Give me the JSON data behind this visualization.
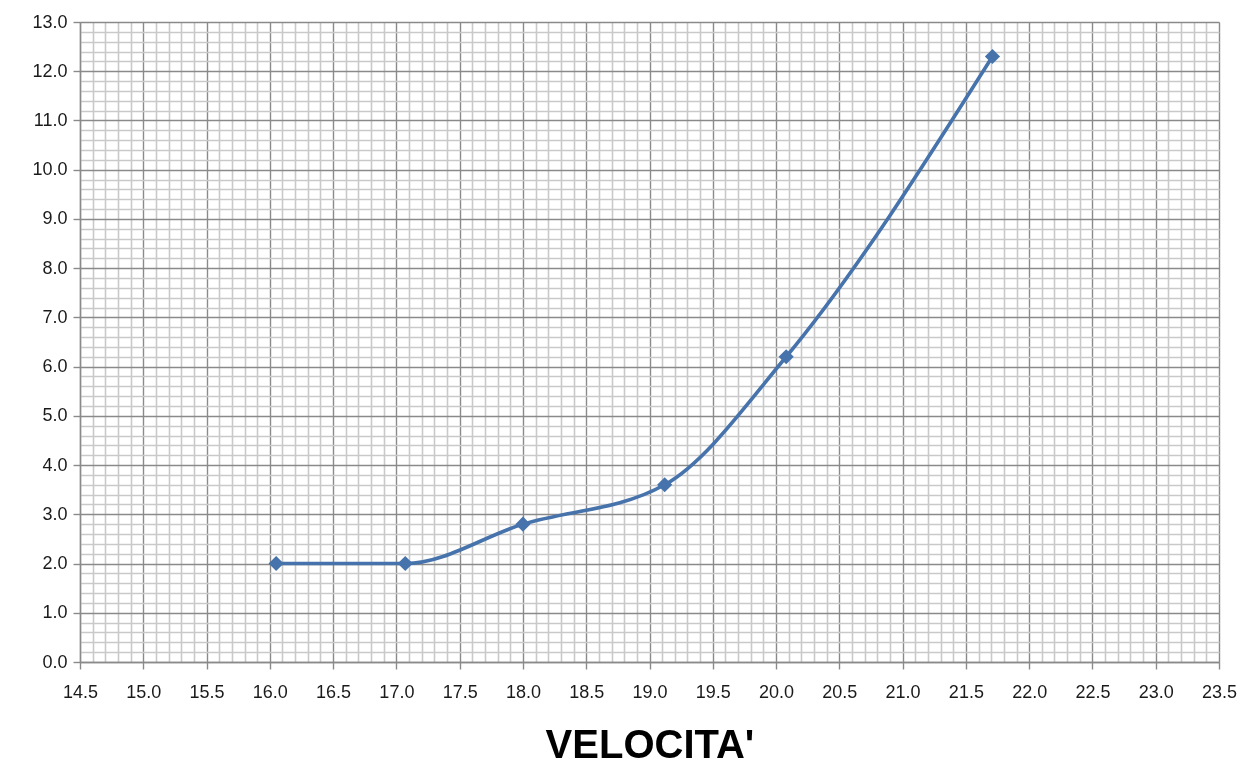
{
  "chart_data": {
    "type": "line",
    "xlabel": "VELOCITA'",
    "x": [
      16.05,
      17.07,
      18.0,
      19.12,
      20.08,
      21.71
    ],
    "series": [
      {
        "color": "#4673ab",
        "values": [
          2.0,
          2.0,
          2.8,
          3.6,
          6.2,
          12.3
        ]
      }
    ],
    "xlim": [
      14.5,
      23.5
    ],
    "xticks": [
      14.5,
      {
        "value": 14.6,
        "label": null
      },
      {
        "value": 14.7,
        "label": null
      },
      {
        "value": 14.8,
        "label": null
      },
      {
        "value": 14.9,
        "label": null
      },
      {
        "value": 15,
        "label": "15.0"
      },
      {
        "value": 15.1,
        "label": null
      },
      {
        "value": 15.2,
        "label": null
      },
      {
        "value": 15.3,
        "label": null
      },
      {
        "value": 15.4,
        "label": null
      },
      15.5,
      {
        "value": 15.6,
        "label": null
      },
      {
        "value": 15.7,
        "label": null
      },
      {
        "value": 15.8,
        "label": null
      },
      {
        "value": 15.9,
        "label": null
      },
      {
        "value": 16,
        "label": "16.0"
      },
      {
        "value": 16.1,
        "label": null
      },
      {
        "value": 16.2,
        "label": null
      },
      {
        "value": 16.3,
        "label": null
      },
      {
        "value": 16.4,
        "label": null
      },
      16.5,
      {
        "value": 16.6,
        "label": null
      },
      {
        "value": 16.7,
        "label": null
      },
      {
        "value": 16.8,
        "label": null
      },
      {
        "value": 16.9,
        "label": null
      },
      {
        "value": 17,
        "label": "17.0"
      },
      {
        "value": 17.1,
        "label": null
      },
      {
        "value": 17.2,
        "label": null
      },
      {
        "value": 17.3,
        "label": null
      },
      {
        "value": 17.4,
        "label": null
      },
      17.5,
      {
        "value": 17.6,
        "label": null
      },
      {
        "value": 17.7,
        "label": null
      },
      {
        "value": 17.8,
        "label": null
      },
      {
        "value": 17.9,
        "label": null
      },
      {
        "value": 18,
        "label": "18.0"
      },
      {
        "value": 18.1,
        "label": null
      },
      {
        "value": 18.2,
        "label": null
      },
      {
        "value": 18.3,
        "label": null
      },
      {
        "value": 18.4,
        "label": null
      },
      18.5,
      {
        "value": 18.6,
        "label": null
      },
      {
        "value": 18.7,
        "label": null
      },
      {
        "value": 18.8,
        "label": null
      },
      {
        "value": 18.9,
        "label": null
      },
      {
        "value": 19,
        "label": "19.0"
      },
      {
        "value": 19.1,
        "label": null
      },
      {
        "value": 19.2,
        "label": null
      },
      {
        "value": 19.3,
        "label": null
      },
      {
        "value": 19.4,
        "label": null
      },
      19.5,
      {
        "value": 19.6,
        "label": null
      },
      {
        "value": 19.7,
        "label": null
      },
      {
        "value": 19.8,
        "label": null
      },
      {
        "value": 19.9,
        "label": null
      },
      {
        "value": 20,
        "label": "20.0"
      },
      {
        "value": 20.1,
        "label": null
      },
      {
        "value": 20.2,
        "label": null
      },
      {
        "value": 20.3,
        "label": null
      },
      {
        "value": 20.4,
        "label": null
      },
      20.5,
      {
        "value": 20.6,
        "label": null
      },
      {
        "value": 20.7,
        "label": null
      },
      {
        "value": 20.8,
        "label": null
      },
      {
        "value": 20.9,
        "label": null
      },
      {
        "value": 21,
        "label": "21.0"
      },
      {
        "value": 21.1,
        "label": null
      },
      {
        "value": 21.2,
        "label": null
      },
      {
        "value": 21.3,
        "label": null
      },
      {
        "value": 21.4,
        "label": null
      },
      21.5,
      {
        "value": 21.6,
        "label": null
      },
      {
        "value": 21.7,
        "label": null
      },
      {
        "value": 21.8,
        "label": null
      },
      {
        "value": 21.9,
        "label": null
      },
      {
        "value": 22,
        "label": "22.0"
      },
      {
        "value": 22.1,
        "label": null
      },
      {
        "value": 22.2,
        "label": null
      },
      {
        "value": 22.3,
        "label": null
      },
      {
        "value": 22.4,
        "label": null
      },
      22.5,
      {
        "value": 22.6,
        "label": null
      },
      {
        "value": 22.7,
        "label": null
      },
      {
        "value": 22.8,
        "label": null
      },
      {
        "value": 22.9,
        "label": null
      },
      {
        "value": 23,
        "label": "23.0"
      },
      {
        "value": 23.1,
        "label": null
      },
      {
        "value": 23.2,
        "label": null
      },
      {
        "value": 23.3,
        "label": null
      },
      {
        "value": 23.4,
        "label": null
      },
      23.5
    ],
    "ylim": [
      0,
      13
    ],
    "yticks": [
      {
        "value": 0,
        "label": "0.0"
      },
      {
        "value": 0.2,
        "label": null
      },
      {
        "value": 0.4,
        "label": null
      },
      {
        "value": 0.6,
        "label": null
      },
      {
        "value": 0.8,
        "label": null
      },
      {
        "value": 1,
        "label": "1.0"
      },
      {
        "value": 1.2,
        "label": null
      },
      {
        "value": 1.4,
        "label": null
      },
      {
        "value": 1.6,
        "label": null
      },
      {
        "value": 1.8,
        "label": null
      },
      {
        "value": 2,
        "label": "2.0"
      },
      {
        "value": 2.2,
        "label": null
      },
      {
        "value": 2.4,
        "label": null
      },
      {
        "value": 2.6,
        "label": null
      },
      {
        "value": 2.8,
        "label": null
      },
      {
        "value": 3,
        "label": "3.0"
      },
      {
        "value": 3.2,
        "label": null
      },
      {
        "value": 3.4,
        "label": null
      },
      {
        "value": 3.6,
        "label": null
      },
      {
        "value": 3.8,
        "label": null
      },
      {
        "value": 4,
        "label": "4.0"
      },
      {
        "value": 4.2,
        "label": null
      },
      {
        "value": 4.4,
        "label": null
      },
      {
        "value": 4.6,
        "label": null
      },
      {
        "value": 4.8,
        "label": null
      },
      {
        "value": 5,
        "label": "5.0"
      },
      {
        "value": 5.2,
        "label": null
      },
      {
        "value": 5.4,
        "label": null
      },
      {
        "value": 5.6,
        "label": null
      },
      {
        "value": 5.8,
        "label": null
      },
      {
        "value": 6,
        "label": "6.0"
      },
      {
        "value": 6.2,
        "label": null
      },
      {
        "value": 6.4,
        "label": null
      },
      {
        "value": 6.6,
        "label": null
      },
      {
        "value": 6.8,
        "label": null
      },
      {
        "value": 7,
        "label": "7.0"
      },
      {
        "value": 7.2,
        "label": null
      },
      {
        "value": 7.4,
        "label": null
      },
      {
        "value": 7.6,
        "label": null
      },
      {
        "value": 7.8,
        "label": null
      },
      {
        "value": 8,
        "label": "8.0"
      },
      {
        "value": 8.2,
        "label": null
      },
      {
        "value": 8.4,
        "label": null
      },
      {
        "value": 8.6,
        "label": null
      },
      {
        "value": 8.8,
        "label": null
      },
      {
        "value": 9,
        "label": "9.0"
      },
      {
        "value": 9.2,
        "label": null
      },
      {
        "value": 9.4,
        "label": null
      },
      {
        "value": 9.6,
        "label": null
      },
      {
        "value": 9.8,
        "label": null
      },
      {
        "value": 10,
        "label": "10.0"
      },
      {
        "value": 10.2,
        "label": null
      },
      {
        "value": 10.4,
        "label": null
      },
      {
        "value": 10.6,
        "label": null
      },
      {
        "value": 10.8,
        "label": null
      },
      {
        "value": 11,
        "label": "11.0"
      },
      {
        "value": 11.2,
        "label": null
      },
      {
        "value": 11.4,
        "label": null
      },
      {
        "value": 11.6,
        "label": null
      },
      {
        "value": 11.8,
        "label": null
      },
      {
        "value": 12,
        "label": "12.0"
      },
      {
        "value": 12.2,
        "label": null
      },
      {
        "value": 12.4,
        "label": null
      },
      {
        "value": 12.6,
        "label": null
      },
      {
        "value": 12.8,
        "label": null
      },
      {
        "value": 13,
        "label": "13.0"
      }
    ],
    "grid": true,
    "marker": "diamond",
    "line_style": "solid"
  }
}
